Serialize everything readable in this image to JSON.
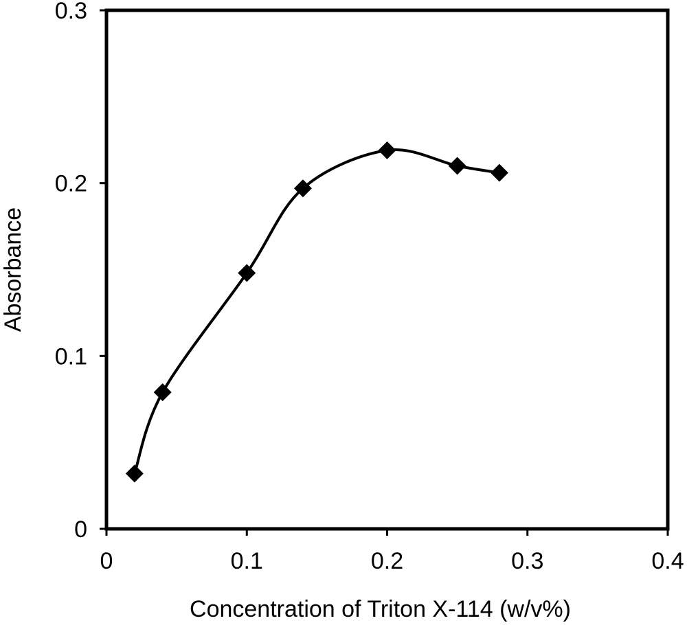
{
  "chart_data": {
    "type": "line",
    "title": "",
    "xlabel": "Concentration of Triton X-114 (w/v%)",
    "ylabel": "Absorbance",
    "xlim": [
      0,
      0.4
    ],
    "ylim": [
      0,
      0.3
    ],
    "x_ticks": [
      "0",
      "0.1",
      "0.2",
      "0.3",
      "0.4"
    ],
    "y_ticks": [
      "0",
      "0.1",
      "0.2",
      "0.3"
    ],
    "x_tick_values": [
      0,
      0.1,
      0.2,
      0.3,
      0.4
    ],
    "y_tick_values": [
      0,
      0.1,
      0.2,
      0.3
    ],
    "smooth": true,
    "marker": "diamond",
    "grid": false,
    "legend": "none",
    "colors": {
      "line": "#000000",
      "marker": "#000000",
      "frame": "#000000",
      "background": "#ffffff"
    },
    "series": [
      {
        "x": [
          0.02,
          0.04,
          0.1,
          0.14,
          0.2,
          0.25,
          0.28
        ],
        "y": [
          0.032,
          0.079,
          0.148,
          0.197,
          0.219,
          0.21,
          0.206
        ]
      }
    ]
  }
}
